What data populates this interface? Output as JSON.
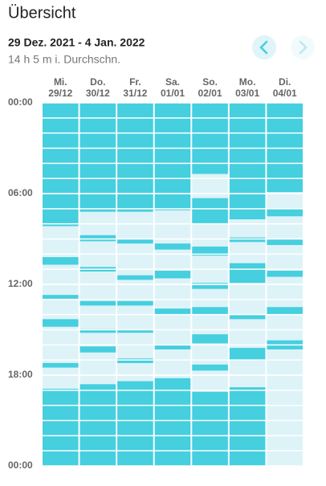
{
  "header": {
    "title": "Übersicht",
    "date_range": "29 Dez. 2021 - 4 Jan. 2022",
    "average": "14 h 5 m i. Durchschn."
  },
  "chart_data": {
    "type": "timeline",
    "color": "#45cfdf",
    "empty_color": "#ddf3f8",
    "ylim": [
      0,
      24
    ],
    "yticks": [
      {
        "value": 0,
        "label": "00:00"
      },
      {
        "value": 6,
        "label": "06:00"
      },
      {
        "value": 12,
        "label": "12:00"
      },
      {
        "value": 18,
        "label": "18:00"
      },
      {
        "value": 24,
        "label": "00:00"
      }
    ],
    "minor_yticks": [
      1,
      2,
      3,
      4,
      5,
      6,
      7,
      8,
      9,
      10,
      11,
      12,
      13,
      14,
      15,
      16,
      17,
      18,
      19,
      20,
      21,
      22,
      23
    ],
    "days": [
      {
        "name": "Mi.",
        "date": "29/12",
        "segments": [
          [
            0,
            8.15
          ],
          [
            10.2,
            10.7
          ],
          [
            12.7,
            12.95
          ],
          [
            14.3,
            14.8
          ],
          [
            17.2,
            17.5
          ],
          [
            18.9,
            24
          ]
        ]
      },
      {
        "name": "Do.",
        "date": "30/12",
        "segments": [
          [
            0,
            7.2
          ],
          [
            8.75,
            9.15
          ],
          [
            10.85,
            11.15
          ],
          [
            13.1,
            13.4
          ],
          [
            14.95,
            15.2
          ],
          [
            16.1,
            16.5
          ],
          [
            18.6,
            24
          ]
        ]
      },
      {
        "name": "Fr.",
        "date": "31/12",
        "segments": [
          [
            0,
            7.2
          ],
          [
            9.0,
            9.3
          ],
          [
            11.4,
            11.7
          ],
          [
            13.1,
            13.4
          ],
          [
            15.0,
            15.2
          ],
          [
            16.9,
            17.2
          ],
          [
            18.4,
            24
          ]
        ]
      },
      {
        "name": "Sa.",
        "date": "01/01",
        "segments": [
          [
            0,
            7.1
          ],
          [
            9.3,
            9.7
          ],
          [
            11.1,
            11.6
          ],
          [
            13.6,
            14.0
          ],
          [
            16.0,
            16.3
          ],
          [
            18.2,
            24
          ]
        ]
      },
      {
        "name": "So.",
        "date": "02/01",
        "segments": [
          [
            0,
            4.7
          ],
          [
            6.3,
            8.0
          ],
          [
            9.5,
            10.1
          ],
          [
            11.9,
            12.3
          ],
          [
            13.5,
            14.0
          ],
          [
            15.3,
            15.9
          ],
          [
            17.3,
            17.7
          ],
          [
            19.1,
            24
          ]
        ]
      },
      {
        "name": "Mo.",
        "date": "03/01",
        "segments": [
          [
            0,
            7.7
          ],
          [
            8.9,
            9.2
          ],
          [
            10.6,
            11.9
          ],
          [
            14.0,
            14.3
          ],
          [
            16.2,
            17.0
          ],
          [
            18.8,
            24
          ]
        ]
      },
      {
        "name": "Di.",
        "date": "04/01",
        "segments": [
          [
            0,
            5.9
          ],
          [
            7.0,
            7.5
          ],
          [
            9.0,
            9.4
          ],
          [
            11.1,
            11.5
          ],
          [
            13.5,
            14.0
          ],
          [
            15.7,
            16.3
          ]
        ]
      }
    ]
  }
}
